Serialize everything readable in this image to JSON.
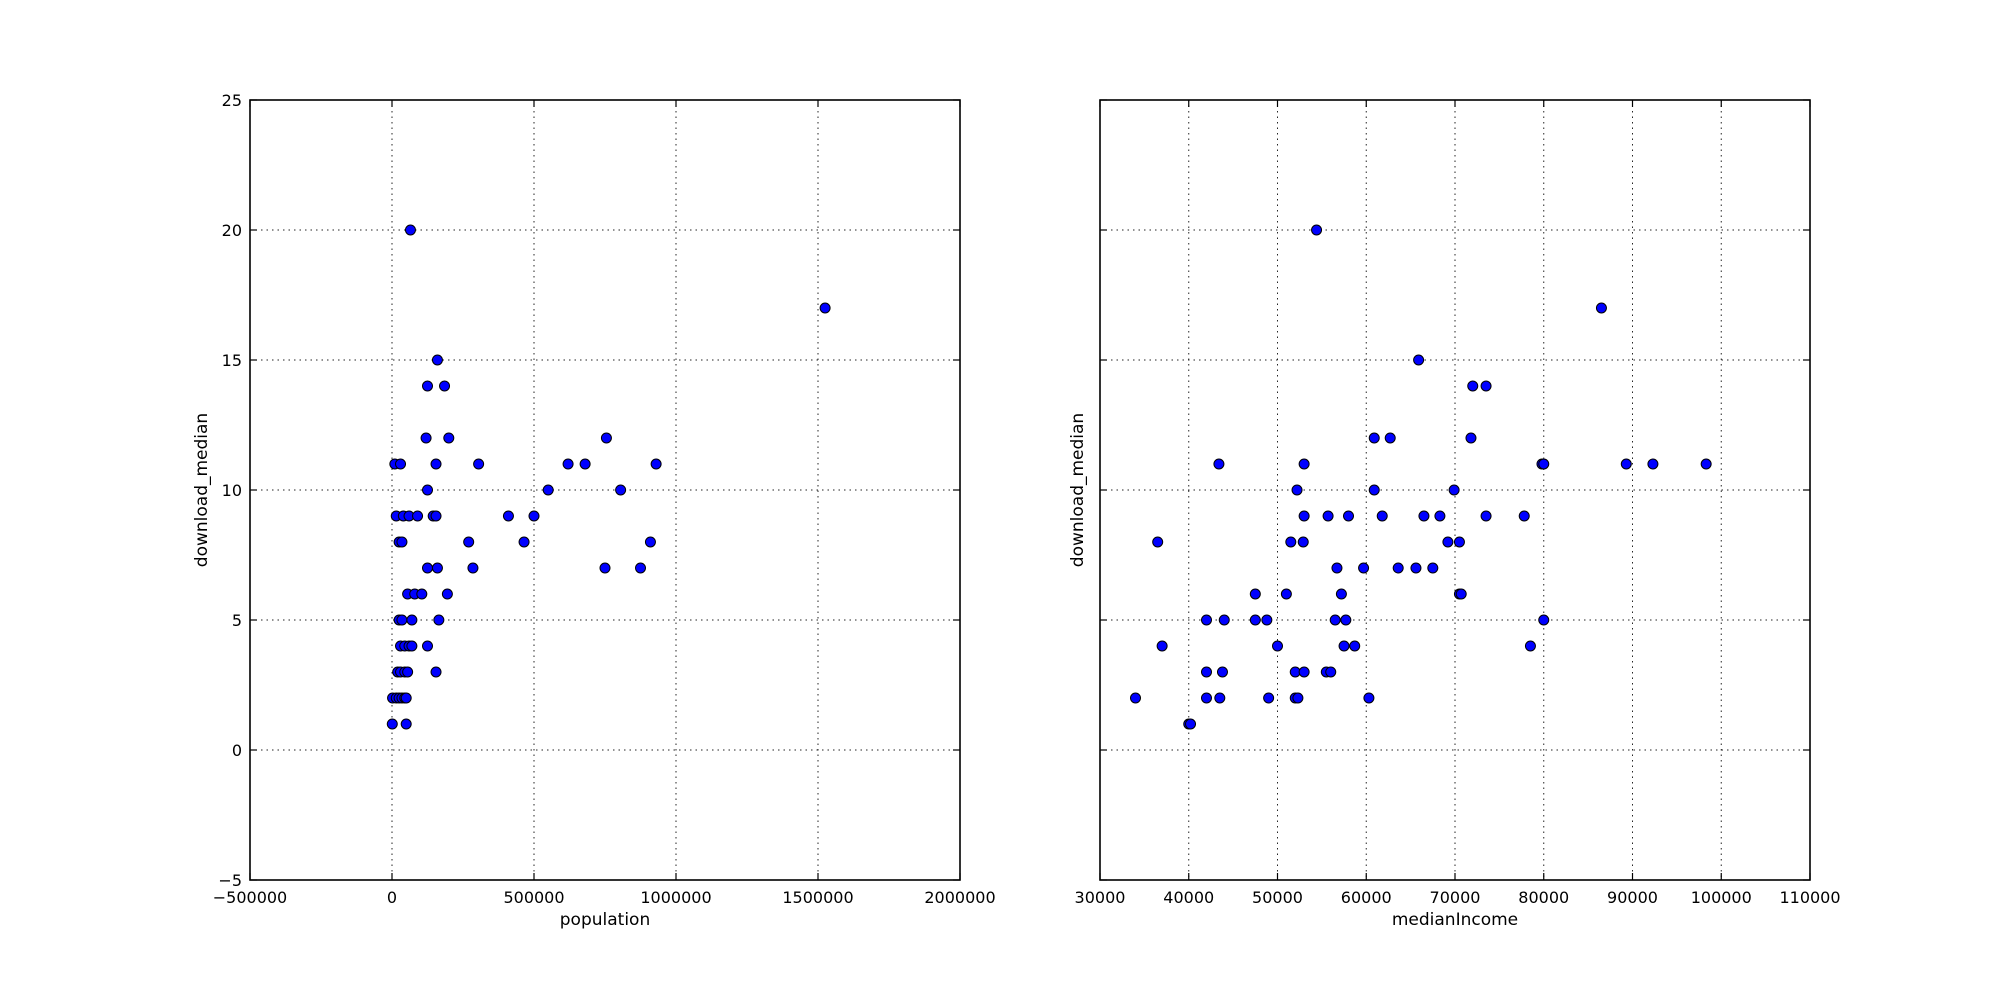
{
  "chart_data": [
    {
      "type": "scatter",
      "xlabel": "population",
      "ylabel": "download_median",
      "xlim": [
        -500000,
        2000000
      ],
      "ylim": [
        -5,
        25
      ],
      "xticks": [
        -500000,
        0,
        500000,
        1000000,
        1500000,
        2000000
      ],
      "xtick_labels": [
        "−500000",
        "0",
        "500000",
        "1000000",
        "1500000",
        "2000000"
      ],
      "yticks": [
        -5,
        0,
        5,
        10,
        15,
        20,
        25
      ],
      "ytick_labels": [
        "−5",
        "0",
        "5",
        "10",
        "15",
        "20",
        "25"
      ],
      "grid": true,
      "marker_color": "#0000ff",
      "points": [
        {
          "x": 1000,
          "y": 1
        },
        {
          "x": 50000,
          "y": 1
        },
        {
          "x": 2000,
          "y": 2
        },
        {
          "x": 15000,
          "y": 2
        },
        {
          "x": 25000,
          "y": 2
        },
        {
          "x": 35000,
          "y": 2
        },
        {
          "x": 45000,
          "y": 2
        },
        {
          "x": 50000,
          "y": 2
        },
        {
          "x": 20000,
          "y": 3
        },
        {
          "x": 30000,
          "y": 3
        },
        {
          "x": 45000,
          "y": 3
        },
        {
          "x": 55000,
          "y": 3
        },
        {
          "x": 155000,
          "y": 3
        },
        {
          "x": 30000,
          "y": 4
        },
        {
          "x": 45000,
          "y": 4
        },
        {
          "x": 60000,
          "y": 4
        },
        {
          "x": 70000,
          "y": 4
        },
        {
          "x": 125000,
          "y": 4
        },
        {
          "x": 25000,
          "y": 5
        },
        {
          "x": 35000,
          "y": 5
        },
        {
          "x": 70000,
          "y": 5
        },
        {
          "x": 165000,
          "y": 5
        },
        {
          "x": 55000,
          "y": 6
        },
        {
          "x": 80000,
          "y": 6
        },
        {
          "x": 105000,
          "y": 6
        },
        {
          "x": 195000,
          "y": 6
        },
        {
          "x": 125000,
          "y": 7
        },
        {
          "x": 160000,
          "y": 7
        },
        {
          "x": 285000,
          "y": 7
        },
        {
          "x": 750000,
          "y": 7
        },
        {
          "x": 875000,
          "y": 7
        },
        {
          "x": 25000,
          "y": 8
        },
        {
          "x": 35000,
          "y": 8
        },
        {
          "x": 270000,
          "y": 8
        },
        {
          "x": 465000,
          "y": 8
        },
        {
          "x": 910000,
          "y": 8
        },
        {
          "x": 15000,
          "y": 9
        },
        {
          "x": 40000,
          "y": 9
        },
        {
          "x": 60000,
          "y": 9
        },
        {
          "x": 90000,
          "y": 9
        },
        {
          "x": 145000,
          "y": 9
        },
        {
          "x": 155000,
          "y": 9
        },
        {
          "x": 410000,
          "y": 9
        },
        {
          "x": 500000,
          "y": 9
        },
        {
          "x": 125000,
          "y": 10
        },
        {
          "x": 550000,
          "y": 10
        },
        {
          "x": 805000,
          "y": 10
        },
        {
          "x": 10000,
          "y": 11
        },
        {
          "x": 30000,
          "y": 11
        },
        {
          "x": 155000,
          "y": 11
        },
        {
          "x": 305000,
          "y": 11
        },
        {
          "x": 620000,
          "y": 11
        },
        {
          "x": 680000,
          "y": 11
        },
        {
          "x": 930000,
          "y": 11
        },
        {
          "x": 120000,
          "y": 12
        },
        {
          "x": 200000,
          "y": 12
        },
        {
          "x": 755000,
          "y": 12
        },
        {
          "x": 125000,
          "y": 14
        },
        {
          "x": 185000,
          "y": 14
        },
        {
          "x": 160000,
          "y": 15
        },
        {
          "x": 1525000,
          "y": 17
        },
        {
          "x": 65000,
          "y": 20
        }
      ]
    },
    {
      "type": "scatter",
      "xlabel": "medianIncome",
      "ylabel": "download_median",
      "xlim": [
        30000,
        110000
      ],
      "ylim": [
        -5,
        25
      ],
      "xticks": [
        30000,
        40000,
        50000,
        60000,
        70000,
        80000,
        90000,
        100000,
        110000
      ],
      "xtick_labels": [
        "30000",
        "40000",
        "50000",
        "60000",
        "70000",
        "80000",
        "90000",
        "100000",
        "110000"
      ],
      "yticks": [
        -5,
        0,
        5,
        10,
        15,
        20,
        25
      ],
      "ytick_labels": [],
      "grid": true,
      "marker_color": "#0000ff",
      "points": [
        {
          "x": 40000,
          "y": 1
        },
        {
          "x": 40200,
          "y": 1
        },
        {
          "x": 34000,
          "y": 2
        },
        {
          "x": 42000,
          "y": 2
        },
        {
          "x": 43500,
          "y": 2
        },
        {
          "x": 49000,
          "y": 2
        },
        {
          "x": 52000,
          "y": 2
        },
        {
          "x": 52300,
          "y": 2
        },
        {
          "x": 60300,
          "y": 2
        },
        {
          "x": 42000,
          "y": 3
        },
        {
          "x": 43800,
          "y": 3
        },
        {
          "x": 52000,
          "y": 3
        },
        {
          "x": 53000,
          "y": 3
        },
        {
          "x": 55500,
          "y": 3
        },
        {
          "x": 56000,
          "y": 3
        },
        {
          "x": 37000,
          "y": 4
        },
        {
          "x": 50000,
          "y": 4
        },
        {
          "x": 57500,
          "y": 4
        },
        {
          "x": 58700,
          "y": 4
        },
        {
          "x": 78500,
          "y": 4
        },
        {
          "x": 42000,
          "y": 5
        },
        {
          "x": 44000,
          "y": 5
        },
        {
          "x": 47500,
          "y": 5
        },
        {
          "x": 48800,
          "y": 5
        },
        {
          "x": 56500,
          "y": 5
        },
        {
          "x": 57700,
          "y": 5
        },
        {
          "x": 80000,
          "y": 5
        },
        {
          "x": 47500,
          "y": 6
        },
        {
          "x": 51000,
          "y": 6
        },
        {
          "x": 57200,
          "y": 6
        },
        {
          "x": 70500,
          "y": 6
        },
        {
          "x": 70700,
          "y": 6
        },
        {
          "x": 56700,
          "y": 7
        },
        {
          "x": 59700,
          "y": 7
        },
        {
          "x": 63600,
          "y": 7
        },
        {
          "x": 65600,
          "y": 7
        },
        {
          "x": 67500,
          "y": 7
        },
        {
          "x": 36500,
          "y": 8
        },
        {
          "x": 51500,
          "y": 8
        },
        {
          "x": 52900,
          "y": 8
        },
        {
          "x": 69200,
          "y": 8
        },
        {
          "x": 70500,
          "y": 8
        },
        {
          "x": 53000,
          "y": 9
        },
        {
          "x": 55700,
          "y": 9
        },
        {
          "x": 58000,
          "y": 9
        },
        {
          "x": 61800,
          "y": 9
        },
        {
          "x": 66500,
          "y": 9
        },
        {
          "x": 68300,
          "y": 9
        },
        {
          "x": 73500,
          "y": 9
        },
        {
          "x": 77800,
          "y": 9
        },
        {
          "x": 52200,
          "y": 10
        },
        {
          "x": 60900,
          "y": 10
        },
        {
          "x": 69900,
          "y": 10
        },
        {
          "x": 43400,
          "y": 11
        },
        {
          "x": 53000,
          "y": 11
        },
        {
          "x": 79800,
          "y": 11
        },
        {
          "x": 80000,
          "y": 11
        },
        {
          "x": 89300,
          "y": 11
        },
        {
          "x": 92300,
          "y": 11
        },
        {
          "x": 98300,
          "y": 11
        },
        {
          "x": 60900,
          "y": 12
        },
        {
          "x": 62700,
          "y": 12
        },
        {
          "x": 71800,
          "y": 12
        },
        {
          "x": 72000,
          "y": 14
        },
        {
          "x": 73500,
          "y": 14
        },
        {
          "x": 65900,
          "y": 15
        },
        {
          "x": 86500,
          "y": 17
        },
        {
          "x": 54400,
          "y": 20
        }
      ]
    }
  ]
}
